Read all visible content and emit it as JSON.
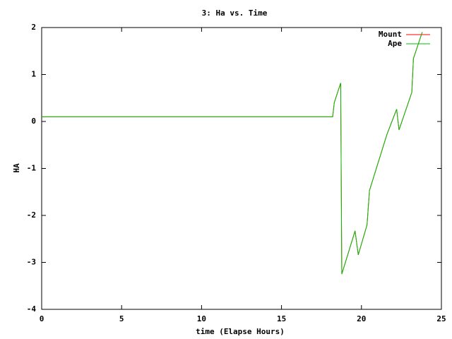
{
  "chart_data": {
    "type": "line",
    "title": "3: Ha vs. Time",
    "x_label": "time (Elapse Hours)",
    "y_label": "HA",
    "x": [
      0,
      18.2,
      18.3,
      18.7,
      18.77,
      19.6,
      19.8,
      20.35,
      20.5,
      21.6,
      22.2,
      22.35,
      23.15,
      23.25,
      23.8
    ],
    "series": [
      {
        "name": "Mount",
        "color": "#ff0000",
        "values": [
          0.1,
          0.1,
          0.4,
          0.82,
          -3.25,
          -2.33,
          -2.84,
          -2.2,
          -1.47,
          -0.27,
          0.26,
          -0.18,
          0.62,
          1.34,
          1.9
        ]
      },
      {
        "name": "Ape",
        "color": "#00c000",
        "values": [
          0.1,
          0.1,
          0.4,
          0.82,
          -3.25,
          -2.33,
          -2.84,
          -2.2,
          -1.47,
          -0.27,
          0.26,
          -0.18,
          0.62,
          1.34,
          1.9
        ]
      }
    ],
    "xlim": [
      0,
      25
    ],
    "xticks": [
      0,
      5,
      10,
      15,
      20,
      25
    ],
    "ylim": [
      -4,
      2
    ],
    "yticks": [
      -4,
      -3,
      -2,
      -1,
      0,
      1,
      2
    ],
    "grid": false,
    "legend": "top-right"
  }
}
